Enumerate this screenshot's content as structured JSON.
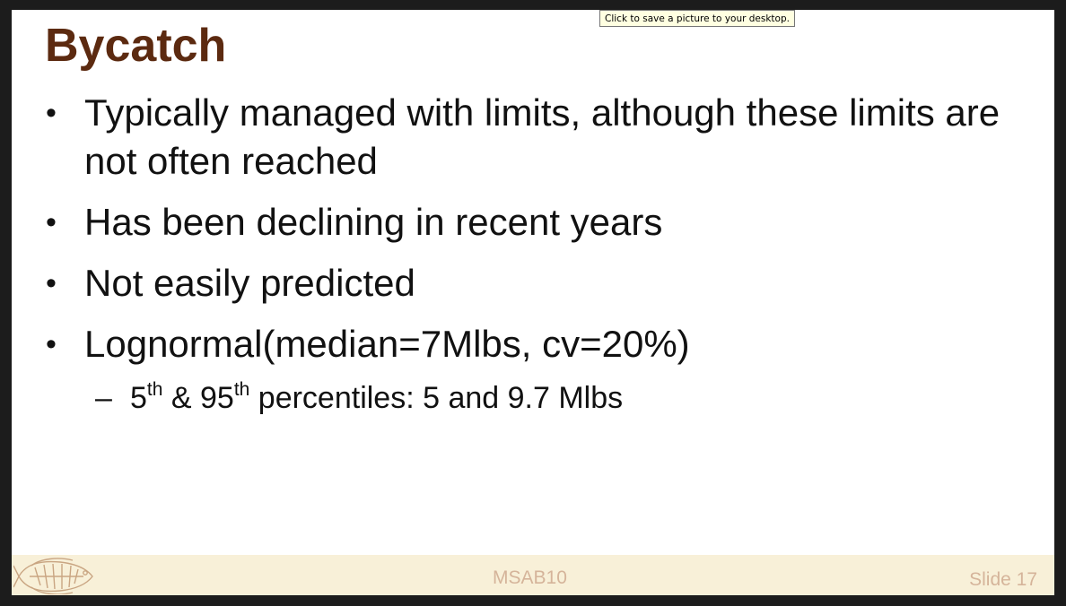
{
  "slide": {
    "title": "Bycatch",
    "bullets": [
      {
        "text": "Typically managed with limits, although these limits are not often reached"
      },
      {
        "text": "Has been declining in recent years"
      },
      {
        "text": "Not easily predicted"
      },
      {
        "text": "Lognormal(median=7Mlbs, cv=20%)"
      }
    ],
    "sub_bullet": {
      "dash": "–",
      "part1": "5",
      "sup1": "th",
      "part2": " & 95",
      "sup2": "th",
      "part3": " percentiles: 5 and 9.7 Mlbs"
    },
    "bullet_glyph": "•"
  },
  "footer": {
    "center_text": "MSAB10",
    "slide_number": "Slide 17",
    "logo_icon": "halibut-fish-icon"
  },
  "tooltip": {
    "text": "Click to save a picture to your desktop."
  },
  "colors": {
    "title": "#5c2a10",
    "footer_bg": "#f8f0d8",
    "footer_text": "#d5b49a",
    "tooltip_bg": "#ffffe1"
  }
}
